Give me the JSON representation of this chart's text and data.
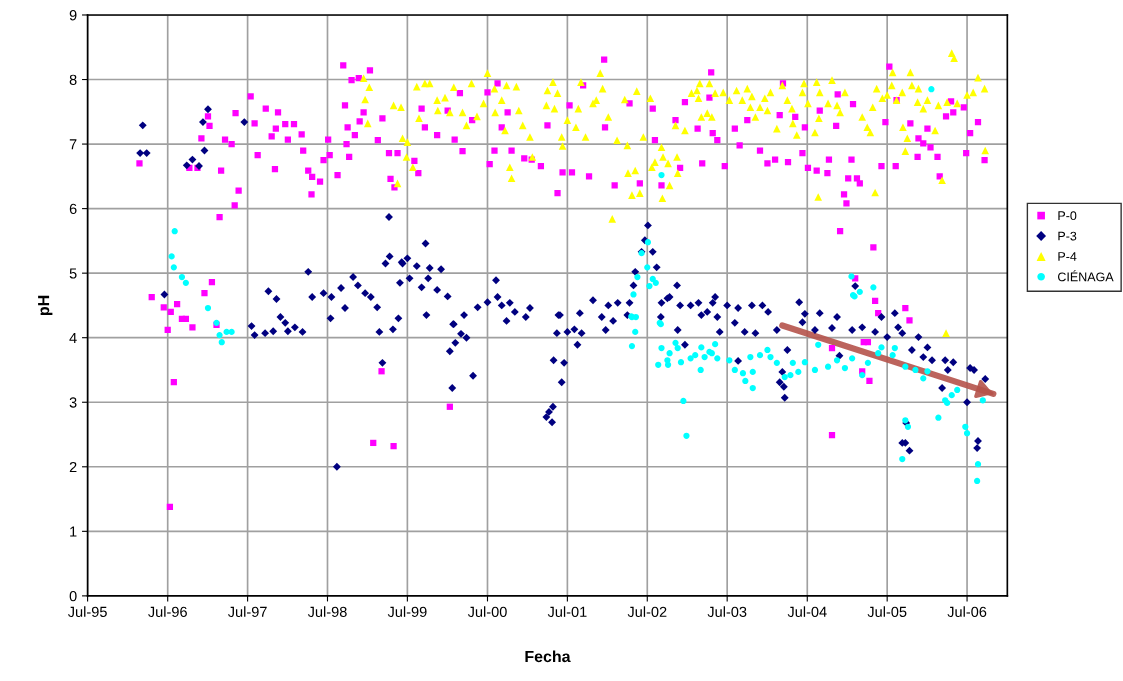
{
  "chart_data": {
    "type": "scatter",
    "xlabel": "Fecha",
    "ylabel": "pH",
    "xlim": [
      "1995-07-01",
      "2007-01-01"
    ],
    "xticks": [
      {
        "value": "1995-07-01",
        "label": "Jul-95"
      },
      {
        "value": "1996-07-01",
        "label": "Jul-96"
      },
      {
        "value": "1997-07-01",
        "label": "Jul-97"
      },
      {
        "value": "1998-07-01",
        "label": "Jul-98"
      },
      {
        "value": "1999-07-01",
        "label": "Jul-99"
      },
      {
        "value": "2000-07-01",
        "label": "Jul-00"
      },
      {
        "value": "2001-07-01",
        "label": "Jul-01"
      },
      {
        "value": "2002-07-01",
        "label": "Jul-02"
      },
      {
        "value": "2003-07-01",
        "label": "Jul-03"
      },
      {
        "value": "2004-07-01",
        "label": "Jul-04"
      },
      {
        "value": "2005-07-01",
        "label": "Jul-05"
      },
      {
        "value": "2006-07-01",
        "label": "Jul-06"
      }
    ],
    "ylim": [
      0,
      9
    ],
    "yticks": [
      0,
      1,
      2,
      3,
      4,
      5,
      6,
      7,
      8,
      9
    ],
    "grid": true,
    "legend": "right",
    "series": [
      {
        "name": "P-0",
        "color": "#ff00ff",
        "marker": "square",
        "x": [
          "1996-02-23",
          "1997-01-01",
          "1996-10-08",
          "1996-11-14",
          "1997-01-08",
          "1996-12-02",
          "1997-03-02",
          "1997-05-21",
          "1997-05-03",
          "1997-02-23",
          "1997-05-07",
          "1997-03-20",
          "1997-04-19",
          "1997-07-15",
          "1997-08-02",
          "1997-09-22",
          "1997-11-17",
          "1997-11-07",
          "1997-10-19",
          "1997-12-20",
          "1998-01-29",
          "1998-03-05",
          "1998-01-01",
          "1997-08-16",
          "1997-11-03",
          "1998-03-12",
          "1998-04-04",
          "1998-04-22",
          "1998-04-19",
          "1998-05-28",
          "1998-06-13",
          "1998-07-04",
          "1998-07-11",
          "1998-08-16",
          "1998-09-11",
          "1998-10-19",
          "1998-11-21",
          "1999-01-11",
          "1998-09-19",
          "1998-09-26",
          "1998-10-01",
          "1998-11-03",
          "1998-12-13",
          "1998-11-25",
          "1998-10-08",
          "1999-02-16",
          "1999-03-09",
          "1999-04-08",
          "1999-04-15",
          "1999-05-03",
          "1999-05-17",
          "1996-04-19",
          "1996-06-13",
          "1996-07-15",
          "1996-07-01",
          "1996-08-13",
          "1996-09-04",
          "1996-09-22",
          "1996-10-22",
          "1996-12-16",
          "1996-07-29",
          "1996-07-11",
          "1997-02-09",
          "1997-01-19",
          "1999-03-05",
          "1999-01-26",
          "1999-04-29",
          "2000-01-11",
          "1999-09-04",
          "1999-09-19",
          "1999-11-14",
          "2000-01-01",
          "2000-02-26",
          "2000-02-02",
          "2000-03-09",
          "1999-08-20",
          "1999-08-02",
          "2000-04-22",
          "2000-07-01",
          "2000-08-16",
          "2000-07-11",
          "2000-08-02",
          "2000-09-04",
          "2000-10-01",
          "2000-10-19",
          "2000-12-16",
          "2001-01-19",
          "2001-03-02",
          "2001-04-01",
          "2001-05-17",
          "2001-06-09",
          "2001-07-22",
          "2001-07-11",
          "2001-09-11",
          "2001-10-08",
          "2001-12-16",
          "2001-12-20",
          "2002-02-02",
          "2002-04-11",
          "2002-05-28",
          "2002-07-26",
          "2002-08-05",
          "2002-09-04",
          "2002-11-07",
          "2002-11-28",
          "2002-12-20",
          "2003-02-16",
          "2003-03-09",
          "2003-04-19",
          "2003-04-26",
          "2003-04-11",
          "2003-05-17",
          "2003-06-20",
          "2003-08-05",
          "2003-08-27",
          "2003-10-01",
          "2003-11-28",
          "2004-01-01",
          "2004-02-05",
          "2004-02-26",
          "2004-03-12",
          "2004-04-04",
          "2004-05-07",
          "2004-06-09",
          "2004-06-20",
          "2004-07-04",
          "2004-08-13",
          "2004-08-27",
          "2004-10-01",
          "2004-10-08",
          "2004-11-10",
          "2004-11-17",
          "2004-11-28",
          "2004-12-16",
          "2004-12-27",
          "2005-01-04",
          "2005-01-26",
          "2005-01-19",
          "2005-02-13",
          "2005-02-26",
          "2005-04-29",
          "2005-06-05",
          "2005-07-11",
          "2005-06-23",
          "2005-08-13",
          "2005-08-09",
          "2005-09-22",
          "2005-10-11",
          "2005-10-15",
          "2005-11-21",
          "2005-12-13",
          "2005-11-17",
          "2006-01-01",
          "2006-01-15",
          "2006-02-16",
          "2006-02-26",
          "2006-03-27",
          "2006-04-19",
          "2006-04-29",
          "2006-06-16",
          "2006-06-27",
          "2006-07-15",
          "2006-08-20",
          "2006-09-19",
          "2005-02-05",
          "2005-05-07",
          "2005-05-21",
          "2004-10-22",
          "2005-03-09",
          "2005-04-11",
          "2005-03-16",
          "2005-04-04",
          "2004-10-22"
        ],
        "values": [
          6.7,
          7.43,
          6.63,
          6.63,
          7.28,
          7.09,
          6.59,
          6.28,
          6.05,
          5.87,
          7.48,
          7.07,
          7.0,
          7.74,
          7.32,
          7.55,
          7.49,
          7.24,
          7.12,
          7.31,
          7.31,
          7.15,
          7.07,
          6.83,
          6.61,
          6.9,
          6.59,
          6.49,
          6.22,
          6.42,
          6.75,
          7.07,
          6.83,
          6.52,
          8.22,
          7.99,
          8.02,
          8.14,
          7.6,
          7.0,
          7.26,
          7.14,
          7.49,
          7.35,
          6.8,
          7.06,
          7.4,
          6.86,
          6.46,
          6.33,
          6.86,
          4.63,
          4.47,
          4.4,
          4.12,
          4.52,
          4.29,
          4.29,
          4.16,
          4.69,
          3.31,
          1.38,
          4.2,
          4.86,
          3.48,
          2.37,
          2.32,
          2.93,
          7.55,
          7.26,
          7.14,
          7.52,
          7.79,
          7.07,
          6.89,
          6.55,
          6.74,
          7.37,
          7.8,
          7.94,
          6.69,
          6.9,
          7.26,
          7.49,
          6.9,
          6.78,
          6.76,
          6.66,
          7.29,
          6.24,
          6.56,
          6.56,
          7.6,
          7.91,
          6.5,
          8.31,
          7.26,
          6.36,
          7.63,
          6.39,
          7.55,
          7.06,
          6.36,
          7.37,
          6.63,
          7.65,
          7.24,
          6.7,
          8.11,
          7.17,
          7.72,
          7.06,
          6.66,
          7.24,
          6.98,
          7.37,
          6.9,
          6.7,
          6.76,
          7.45,
          7.94,
          6.72,
          7.42,
          6.86,
          7.26,
          6.63,
          6.59,
          7.52,
          6.55,
          6.76,
          7.28,
          7.77,
          5.65,
          6.22,
          6.08,
          6.47,
          7.62,
          6.76,
          6.47,
          6.39,
          5.4,
          6.66,
          8.2,
          7.34,
          7.68,
          6.66,
          4.46,
          4.27,
          7.32,
          7.09,
          7.01,
          6.8,
          7.24,
          6.95,
          6.8,
          6.5,
          7.43,
          7.66,
          7.49,
          7.57,
          6.86,
          7.17,
          7.34,
          6.75,
          4.92,
          4.57,
          4.38,
          3.84,
          3.48,
          3.33,
          3.93,
          3.93,
          2.49
        ]
      },
      {
        "name": "P-3",
        "color": "#000080",
        "marker": "diamond",
        "x": [
          "1996-03-09",
          "1996-02-26",
          "1996-03-27",
          "1996-09-26",
          "1996-10-22",
          "1996-11-21",
          "1996-12-09",
          "1997-01-01",
          "1996-12-16",
          "1997-06-16",
          "1996-06-16",
          "1997-10-04",
          "1997-11-10",
          "1997-11-28",
          "1998-04-04",
          "1998-04-22",
          "1998-06-13",
          "1998-07-19",
          "1998-07-15",
          "1998-09-19",
          "1998-09-01",
          "1998-10-26",
          "1998-11-17",
          "1998-12-20",
          "1999-01-15",
          "1999-02-13",
          "1999-04-08",
          "1999-04-11",
          "1999-03-23",
          "1999-06-05",
          "1999-05-28",
          "1999-05-21",
          "1997-07-19",
          "1997-08-02",
          "1997-09-19",
          "1997-10-26",
          "1997-12-20",
          "1998-01-01",
          "1998-02-02",
          "1998-03-09",
          "1998-08-13",
          "1999-02-23",
          "1999-03-09",
          "1999-04-26",
          "1999-09-22",
          "1999-07-01",
          "1999-06-09",
          "1999-08-13",
          "1999-10-11",
          "1999-12-02",
          "1999-07-11",
          "1999-10-04",
          "1999-09-04",
          "1999-11-14",
          "2000-01-01",
          "1999-09-26",
          "2000-01-29",
          "2000-03-16",
          "2000-05-17",
          "2000-07-01",
          "2000-08-09",
          "2000-08-16",
          "2000-09-04",
          "2000-10-11",
          "2000-11-03",
          "2001-01-11",
          "2000-12-23",
          "2000-09-26",
          "2001-05-21",
          "2001-08-27",
          "2001-10-26",
          "2002-01-04",
          "2001-12-05",
          "2002-02-16",
          "2002-04-01",
          "2002-04-11",
          "2002-04-29",
          "2002-05-07",
          "2002-06-05",
          "2002-06-20",
          "2002-07-04",
          "2002-07-26",
          "2002-08-13",
          "2002-09-04",
          "2002-10-11",
          "2002-11-14",
          "2002-11-28",
          "2003-01-15",
          "2003-02-20",
          "2003-04-01",
          "2003-04-26",
          "2000-01-26",
          "2000-01-11",
          "2000-02-05",
          "2000-03-02",
          "2000-03-27",
          "2000-01-22",
          "2000-04-26",
          "2001-04-29",
          "2001-06-16",
          "2001-06-05",
          "2001-04-26",
          "2001-04-08",
          "2001-03-27",
          "2001-04-22",
          "2001-05-28",
          "2001-05-14",
          "2001-07-01",
          "2001-08-02",
          "2001-09-04",
          "2001-08-16",
          "2001-12-23",
          "2002-01-26",
          "2002-09-01",
          "2002-11-17",
          "2002-12-20",
          "2003-03-05",
          "2002-10-01",
          "2003-05-07",
          "2003-07-01",
          "2003-08-20",
          "2003-10-22",
          "2003-12-09",
          "2004-01-04",
          "2004-05-25",
          "2004-06-20",
          "2004-08-27",
          "2004-11-14",
          "2005-02-05",
          "2005-06-05",
          "2005-08-05",
          "2003-05-17",
          "2003-05-28",
          "2003-08-05",
          "2003-09-19",
          "2003-11-07",
          "2004-02-13",
          "2004-03-09",
          "2004-02-26",
          "2004-03-16",
          "2004-03-20",
          "2004-04-01",
          "2003-08-20",
          "2004-06-09",
          "2004-08-05",
          "2004-10-22",
          "2004-11-25",
          "2005-01-22",
          "2005-03-09",
          "2005-05-07",
          "2005-07-01",
          "2005-08-20",
          "2005-09-08",
          "2005-10-22",
          "2005-11-21",
          "2006-01-01",
          "2005-12-13",
          "2006-01-22",
          "2006-03-23",
          "2006-04-29",
          "2006-04-04",
          "2006-03-09",
          "2006-07-15",
          "2006-08-02",
          "2006-09-22",
          "2006-07-01",
          "2005-09-22",
          "2005-10-11",
          "2005-09-08",
          "2006-08-20",
          "2006-08-16",
          "2005-09-26"
        ],
        "values": [
          7.29,
          6.86,
          6.86,
          6.67,
          6.76,
          6.66,
          7.34,
          7.54,
          6.9,
          7.34,
          4.67,
          4.72,
          4.6,
          4.32,
          5.02,
          4.63,
          4.69,
          4.63,
          4.3,
          4.46,
          4.77,
          4.94,
          4.81,
          4.69,
          4.63,
          4.47,
          5.87,
          5.26,
          5.15,
          5.17,
          4.85,
          4.3,
          4.18,
          4.04,
          4.07,
          4.1,
          4.23,
          4.1,
          4.16,
          4.09,
          2.0,
          4.09,
          3.61,
          4.13,
          5.46,
          5.23,
          5.15,
          5.11,
          5.08,
          5.06,
          4.92,
          4.92,
          4.78,
          4.74,
          4.64,
          4.35,
          4.21,
          4.35,
          4.47,
          4.55,
          4.89,
          4.63,
          4.5,
          4.54,
          4.4,
          4.46,
          4.32,
          4.26,
          4.35,
          4.38,
          4.58,
          4.5,
          4.32,
          4.54,
          4.35,
          4.54,
          4.81,
          5.02,
          5.33,
          5.51,
          5.74,
          5.33,
          5.09,
          4.54,
          4.63,
          4.81,
          4.5,
          4.5,
          4.54,
          4.4,
          4.54,
          4.21,
          3.79,
          3.92,
          4.06,
          4.0,
          3.22,
          3.41,
          3.65,
          3.61,
          3.31,
          2.93,
          2.85,
          2.77,
          2.69,
          4.35,
          4.07,
          4.09,
          4.13,
          4.07,
          3.89,
          4.12,
          4.26,
          4.32,
          4.12,
          3.89,
          4.35,
          4.61,
          4.63,
          4.5,
          4.46,
          4.5,
          4.5,
          4.4,
          4.55,
          4.37,
          4.38,
          4.32,
          4.8,
          4.32,
          4.38,
          4.32,
          4.09,
          4.23,
          4.09,
          4.07,
          4.12,
          3.47,
          3.31,
          3.24,
          3.07,
          3.81,
          3.64,
          4.24,
          4.12,
          4.15,
          3.72,
          4.12,
          4.16,
          4.09,
          4.01,
          4.16,
          4.07,
          3.81,
          4.01,
          3.85,
          3.7,
          3.65,
          3.65,
          3.62,
          3.5,
          3.22,
          3.53,
          3.5,
          3.36,
          3.0,
          2.37,
          2.25,
          2.37,
          2.4,
          2.29,
          2.68
        ]
      },
      {
        "name": "P-4",
        "color": "#ffff00",
        "marker": "triangle",
        "x": [
          "1998-12-13",
          "1999-01-08",
          "1998-12-20",
          "1999-01-01",
          "1999-04-29",
          "1999-06-02",
          "1999-05-17",
          "1999-06-09",
          "1999-08-13",
          "1999-09-19",
          "1999-10-11",
          "1999-08-23",
          "1999-07-01",
          "1999-06-27",
          "1999-07-26",
          "1999-11-14",
          "1999-12-20",
          "1999-11-17",
          "2000-01-11",
          "2000-03-09",
          "2000-03-27",
          "2000-01-29",
          "2000-04-19",
          "2000-05-14",
          "2000-07-01",
          "2000-06-13",
          "2000-08-02",
          "2000-09-04",
          "2000-09-26",
          "2000-11-10",
          "2000-08-05",
          "2000-09-19",
          "2000-11-21",
          "2000-12-09",
          "2001-01-11",
          "2001-01-22",
          "2000-10-11",
          "2000-10-19",
          "2001-04-26",
          "2001-04-01",
          "2001-05-17",
          "2001-03-27",
          "2001-05-03",
          "2001-07-01",
          "2001-06-05",
          "2001-06-09",
          "2001-08-09",
          "2001-08-20",
          "2001-09-01",
          "2001-09-22",
          "2001-10-26",
          "2001-11-28",
          "2001-12-09",
          "2001-11-10",
          "2002-01-04",
          "2002-02-13",
          "2002-01-22",
          "2002-03-20",
          "2002-04-01",
          "2002-04-04",
          "2002-05-14",
          "2002-04-22",
          "2002-05-28",
          "2002-05-07",
          "2002-06-13",
          "2002-07-15",
          "2002-07-22",
          "2002-08-05",
          "2002-09-04",
          "2002-09-11",
          "2002-09-08",
          "2002-10-11",
          "2002-10-04",
          "2002-11-07",
          "2002-11-14",
          "2002-11-17",
          "2002-12-20",
          "2003-01-19",
          "2003-02-13",
          "2003-02-26",
          "2003-04-11",
          "2003-02-20",
          "2003-03-05",
          "2003-04-01",
          "2003-04-22",
          "2003-05-07",
          "2003-06-13",
          "2003-07-11",
          "2003-08-13",
          "2003-10-01",
          "2003-09-08",
          "2003-10-22",
          "2003-10-15",
          "2003-11-07",
          "2003-11-28",
          "2004-01-01",
          "2003-12-20",
          "2004-01-15",
          "2004-03-09",
          "2004-02-13",
          "2004-04-01",
          "2004-04-22",
          "2004-05-14",
          "2004-04-26",
          "2004-06-09",
          "2004-06-16",
          "2004-07-04",
          "2004-08-13",
          "2004-08-27",
          "2004-08-23",
          "2004-08-05",
          "2004-08-20",
          "2004-10-04",
          "2004-10-22",
          "2004-11-14",
          "2004-11-28",
          "2004-12-20",
          "2005-03-09",
          "2005-04-01",
          "2005-04-15",
          "2005-04-26",
          "2005-05-07",
          "2005-05-14",
          "2005-06-09",
          "2005-07-01",
          "2005-07-26",
          "2005-07-22",
          "2005-08-13",
          "2005-09-08",
          "2005-09-11",
          "2005-10-01",
          "2005-09-22",
          "2005-10-15",
          "2005-10-22",
          "2005-11-21",
          "2005-11-17",
          "2005-12-13",
          "2006-01-01",
          "2006-02-05",
          "2006-02-20",
          "2006-03-09",
          "2006-04-01",
          "2006-04-22",
          "2006-05-03",
          "2006-05-17",
          "2006-07-01",
          "2006-07-29",
          "2006-08-20",
          "2006-09-19",
          "2006-09-22",
          "2006-03-27"
        ],
        "values": [
          8.02,
          7.88,
          7.69,
          7.32,
          7.6,
          7.57,
          6.39,
          7.09,
          7.89,
          7.94,
          7.94,
          7.4,
          7.03,
          6.8,
          6.64,
          7.68,
          7.72,
          7.52,
          7.49,
          7.49,
          7.29,
          7.88,
          7.94,
          7.43,
          8.1,
          7.63,
          7.86,
          7.68,
          7.91,
          7.89,
          7.49,
          7.21,
          7.52,
          7.29,
          7.11,
          6.8,
          6.64,
          6.47,
          7.96,
          7.83,
          7.79,
          7.6,
          7.55,
          7.37,
          7.11,
          6.97,
          7.26,
          7.55,
          7.96,
          7.11,
          7.63,
          8.1,
          7.86,
          7.68,
          7.42,
          7.06,
          5.84,
          7.69,
          6.98,
          6.55,
          7.82,
          6.21,
          6.24,
          6.59,
          7.11,
          7.71,
          6.64,
          6.72,
          6.95,
          6.8,
          6.16,
          6.36,
          6.7,
          7.29,
          6.8,
          6.55,
          7.21,
          7.79,
          7.83,
          7.94,
          7.94,
          7.71,
          7.42,
          7.48,
          7.42,
          7.79,
          7.8,
          7.68,
          7.83,
          7.86,
          7.68,
          7.74,
          7.57,
          7.42,
          7.57,
          7.52,
          7.71,
          7.8,
          7.91,
          7.24,
          7.68,
          7.55,
          7.14,
          7.32,
          7.8,
          7.94,
          7.63,
          7.96,
          7.8,
          7.4,
          7.18,
          6.18,
          7.63,
          7.99,
          7.6,
          7.49,
          7.8,
          7.42,
          7.26,
          7.18,
          7.57,
          6.25,
          7.86,
          7.71,
          7.76,
          8.11,
          7.91,
          7.68,
          7.8,
          7.26,
          7.09,
          6.89,
          8.11,
          7.91,
          7.86,
          7.65,
          7.55,
          7.68,
          7.21,
          7.6,
          6.44,
          7.65,
          8.41,
          8.33,
          7.63,
          7.76,
          7.8,
          8.03,
          7.86,
          6.9,
          4.07
        ]
      },
      {
        "name": "CIÉNAGA",
        "color": "#00ffff",
        "marker": "circle",
        "x": [
          "1996-08-02",
          "1996-07-19",
          "1996-07-29",
          "1996-09-04",
          "1996-09-22",
          "1997-01-01",
          "1997-02-09",
          "1997-02-23",
          "1997-03-05",
          "1997-03-27",
          "1997-04-19",
          "2002-09-04",
          "2002-07-04",
          "2002-06-05",
          "2002-07-01",
          "2002-05-17",
          "2002-07-26",
          "2002-08-09",
          "2002-07-11",
          "2002-04-29",
          "2002-04-19",
          "2002-05-10",
          "2002-08-27",
          "2002-04-22",
          "2002-05-07",
          "2002-04-22",
          "2002-09-01",
          "2002-09-04",
          "2002-08-20",
          "2002-10-04",
          "2002-10-01",
          "2002-11-07",
          "2002-11-17",
          "2002-10-11",
          "2002-12-02",
          "2002-12-13",
          "2002-12-27",
          "2003-01-15",
          "2003-02-05",
          "2003-03-02",
          "2003-03-05",
          "2003-03-20",
          "2003-04-22",
          "2003-04-11",
          "2003-05-07",
          "2003-05-17",
          "2003-07-11",
          "2003-08-05",
          "2003-09-11",
          "2003-09-22",
          "2003-10-26",
          "2003-10-26",
          "2003-10-15",
          "2003-11-28",
          "2004-01-01",
          "2004-01-15",
          "2004-02-13",
          "2004-03-20",
          "2004-04-15",
          "2004-04-26",
          "2004-05-21",
          "2004-06-20",
          "2004-08-05",
          "2004-08-20",
          "2004-10-04",
          "2004-11-14",
          "2004-12-20",
          "2005-01-22",
          "2005-03-09",
          "2005-04-04",
          "2005-05-21",
          "2005-06-05",
          "2005-08-05",
          "2005-07-26",
          "2005-09-22",
          "2005-11-07",
          "2005-12-13",
          "2006-01-01",
          "2006-03-23",
          "2006-04-22",
          "2006-05-17",
          "2006-02-20",
          "2006-04-01",
          "2006-06-23",
          "2006-07-01",
          "2006-09-11",
          "2005-09-22",
          "2005-10-04",
          "2005-09-08",
          "2006-08-20",
          "2006-08-16",
          "2005-01-19",
          "2005-02-26",
          "2005-02-02",
          "2005-04-29",
          "2006-01-19",
          "2005-01-26"
        ],
        "values": [
          5.65,
          5.26,
          5.09,
          4.94,
          4.85,
          4.46,
          4.23,
          4.04,
          3.93,
          4.09,
          4.09,
          6.52,
          5.48,
          5.31,
          5.09,
          4.94,
          4.91,
          4.85,
          4.8,
          4.67,
          4.33,
          4.32,
          4.23,
          4.32,
          4.09,
          3.87,
          4.21,
          3.84,
          3.58,
          3.58,
          3.65,
          3.92,
          3.84,
          3.76,
          3.62,
          3.02,
          2.48,
          3.68,
          3.73,
          3.5,
          3.85,
          3.7,
          3.76,
          3.78,
          3.9,
          3.68,
          3.65,
          3.5,
          3.45,
          3.33,
          3.22,
          3.47,
          3.7,
          3.73,
          3.81,
          3.7,
          3.61,
          3.39,
          3.42,
          3.61,
          3.47,
          3.62,
          3.5,
          3.89,
          3.55,
          3.65,
          3.53,
          3.68,
          3.42,
          3.61,
          3.76,
          3.85,
          3.84,
          3.73,
          3.55,
          3.5,
          3.37,
          3.48,
          3.03,
          3.11,
          3.19,
          2.76,
          2.99,
          2.62,
          2.52,
          3.03,
          2.72,
          2.62,
          2.12,
          2.04,
          1.78,
          4.95,
          4.71,
          4.64,
          4.78,
          7.85,
          4.66
        ]
      },
      {
        "type": "line",
        "color": "#b5534b",
        "x": [
          "2004-03-09",
          "2006-10-29"
        ],
        "values": [
          4.19,
          3.13
        ]
      }
    ]
  }
}
